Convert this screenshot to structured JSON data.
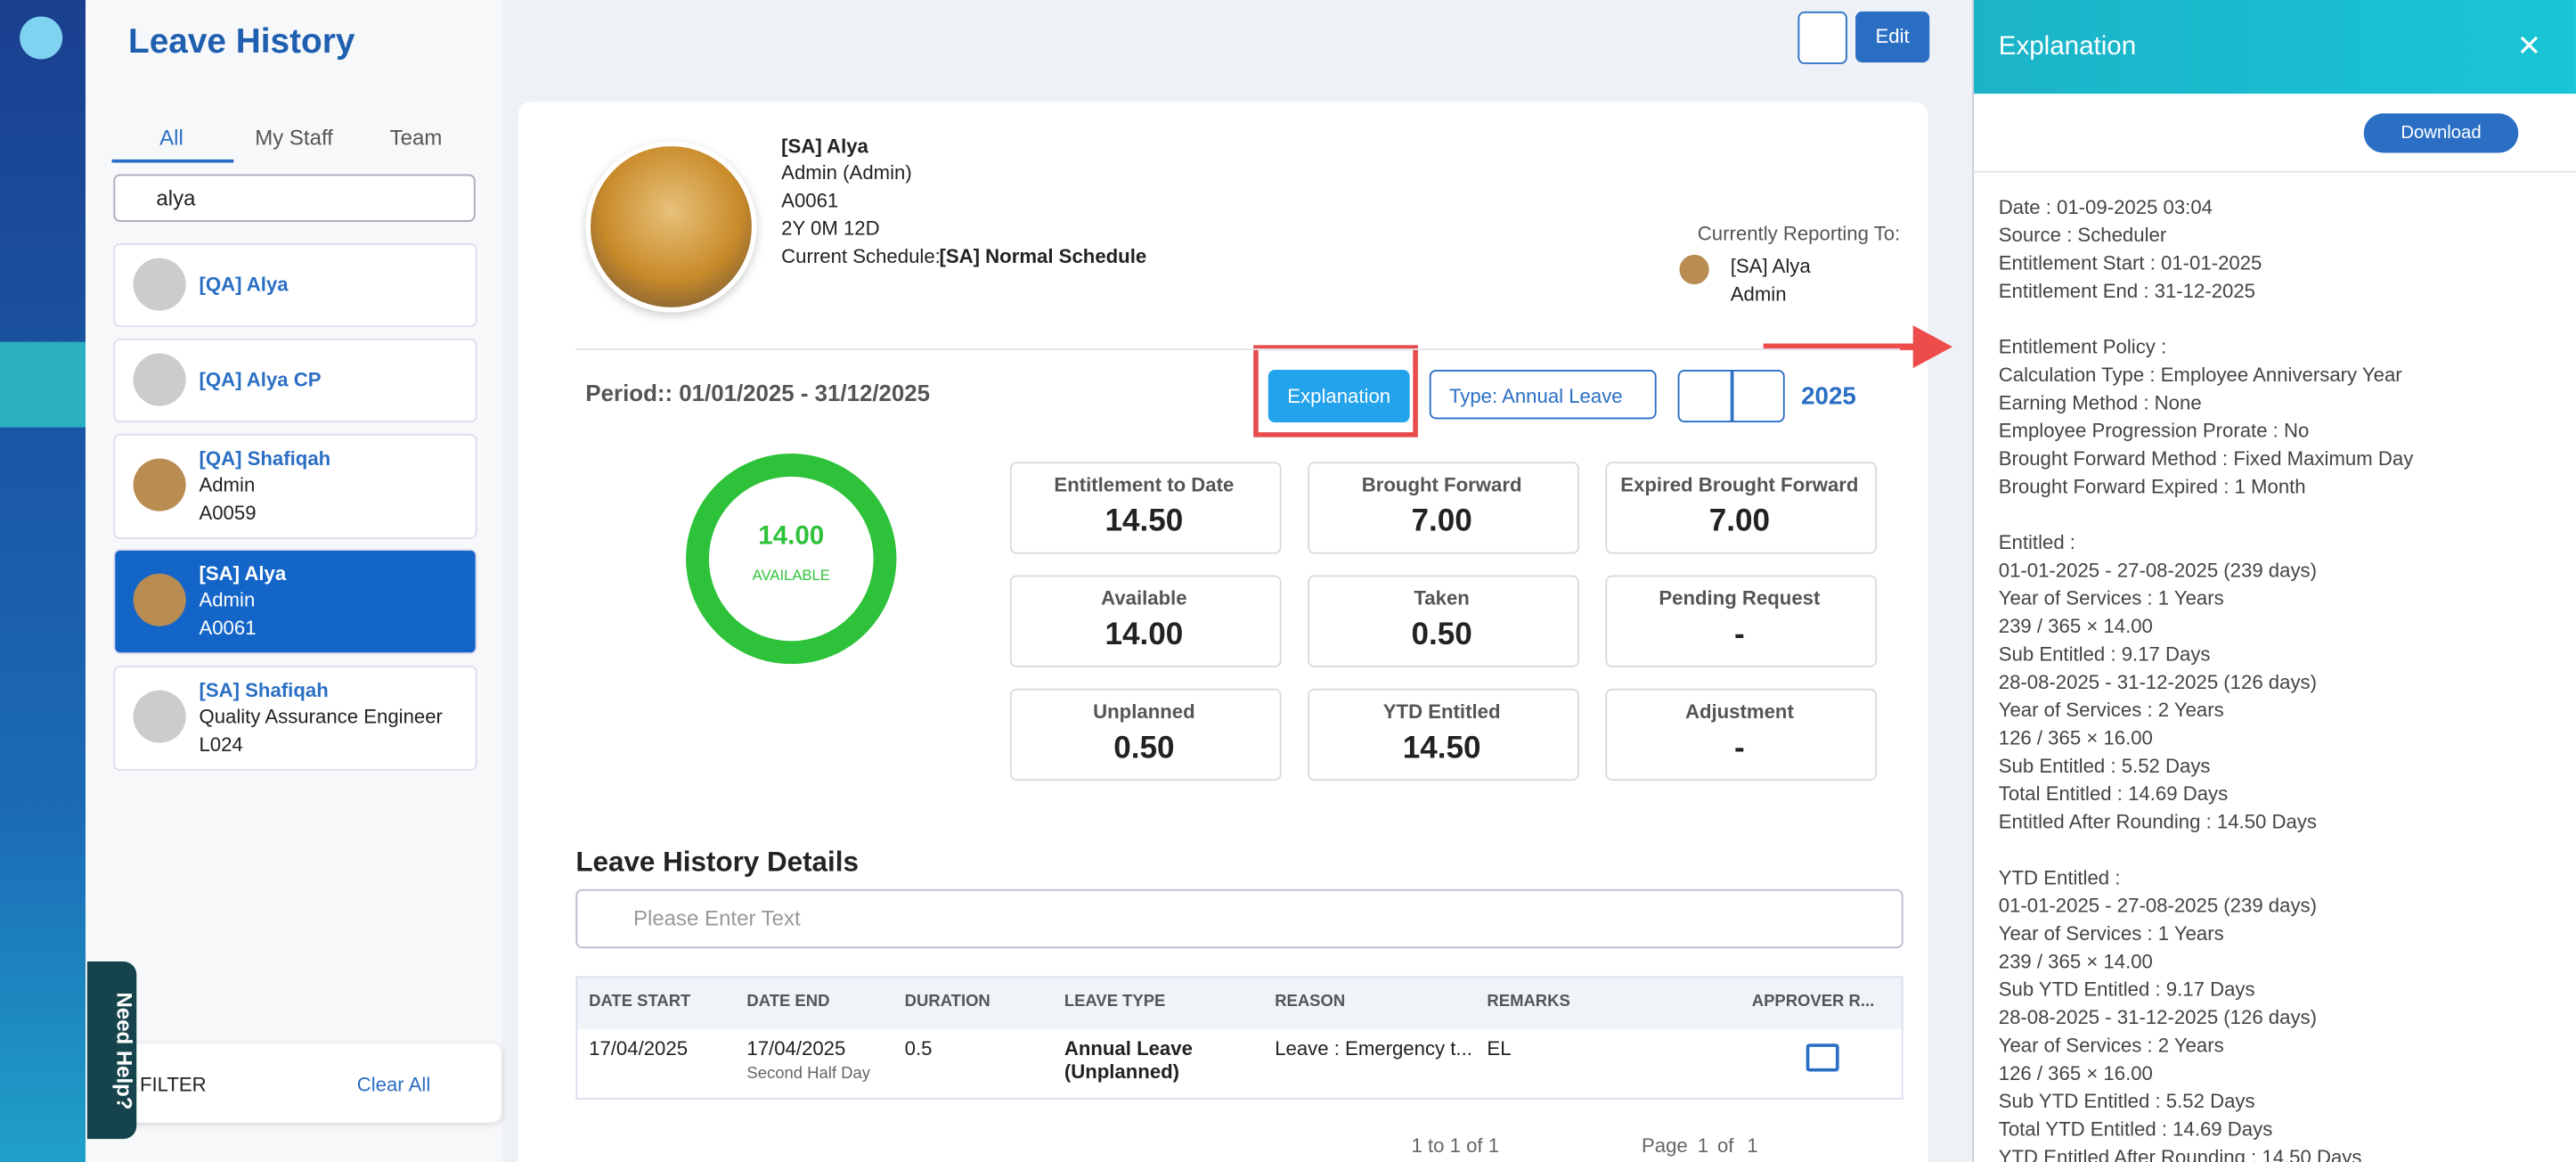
{
  "header": {
    "title": "Leave History",
    "edit": "Edit"
  },
  "staff_panel": {
    "tabs": [
      "All",
      "My Staff",
      "Team"
    ],
    "search": "alya",
    "staff": [
      {
        "name": "[QA] Alya"
      },
      {
        "name": "[QA] Alya CP"
      },
      {
        "name": "[QA] Shafiqah",
        "role": "Admin",
        "id": "A0059"
      },
      {
        "name": "[SA] Alya",
        "role": "Admin",
        "id": "A0061"
      },
      {
        "name": "[SA] Shafiqah",
        "role": "Quality Assurance Engineer",
        "id": "L024"
      }
    ],
    "filter": "FILTER",
    "clear_all": "Clear All",
    "need_help": "Need Help?"
  },
  "profile": {
    "name": "[SA] Alya",
    "role": "Admin (Admin)",
    "id": "A0061",
    "tenure": "2Y 0M 12D",
    "schedule_label": "Current Schedule:",
    "schedule": "[SA] Normal Schedule",
    "reporting_label": "Currently Reporting To:",
    "reporting_name": "[SA] Alya",
    "reporting_role": "Admin"
  },
  "summary": {
    "period": "Period:: 01/01/2025 - 31/12/2025",
    "explanation_button": "Explanation",
    "type_dropdown": "Type: Annual Leave",
    "year": "2025",
    "donut_value": "14.00",
    "donut_label": "AVAILABLE",
    "stats": [
      {
        "label": "Entitlement to Date",
        "value": "14.50"
      },
      {
        "label": "Brought Forward",
        "value": "7.00"
      },
      {
        "label": "Expired Brought Forward",
        "value": "7.00"
      },
      {
        "label": "Available",
        "value": "14.00"
      },
      {
        "label": "Taken",
        "value": "0.50"
      },
      {
        "label": "Pending Request",
        "value": "-"
      },
      {
        "label": "Unplanned",
        "value": "0.50"
      },
      {
        "label": "YTD Entitled",
        "value": "14.50"
      },
      {
        "label": "Adjustment",
        "value": "-"
      }
    ]
  },
  "details": {
    "title": "Leave History Details",
    "search_placeholder": "Please Enter Text",
    "columns": [
      "DATE START",
      "DATE END",
      "DURATION",
      "LEAVE TYPE",
      "REASON",
      "REMARKS",
      "APPROVER R..."
    ],
    "rows": [
      [
        "17/04/2025",
        "17/04/2025",
        "0.5",
        "Annual Leave (Unplanned)",
        "Leave : Emergency t...",
        "EL"
      ]
    ],
    "row_notes": [
      "Second Half Day"
    ],
    "pagination": {
      "range": "1 to 1 of 1",
      "page_label": "Page",
      "page": "1",
      "of": "of",
      "total": "1"
    }
  },
  "explanation": {
    "title": "Explanation",
    "download": "Download",
    "groups": [
      [
        "Date : 01-09-2025 03:04",
        "Source : Scheduler",
        "Entitlement Start : 01-01-2025",
        "Entitlement End : 31-12-2025"
      ],
      [
        "Entitlement Policy :",
        "Calculation Type : Employee Anniversary Year",
        "Earning Method : None",
        "Employee Progression Prorate : No",
        "Brought Forward Method : Fixed Maximum Day",
        "Brought Forward Expired : 1 Month"
      ],
      [
        "Entitled :",
        "01-01-2025 - 27-08-2025 (239 days)",
        "Year of Services : 1 Years",
        "239 / 365 × 14.00",
        "Sub Entitled : 9.17 Days",
        "28-08-2025 - 31-12-2025 (126 days)",
        "Year of Services : 2 Years",
        "126 / 365 × 16.00",
        "Sub Entitled : 5.52 Days",
        "Total Entitled : 14.69 Days",
        "Entitled After Rounding : 14.50 Days"
      ],
      [
        "YTD Entitled :",
        "01-01-2025 - 27-08-2025 (239 days)",
        "Year of Services : 1 Years",
        "239 / 365 × 14.00",
        "Sub YTD Entitled : 9.17 Days",
        "28-08-2025 - 31-12-2025 (126 days)",
        "Year of Services : 2 Years",
        "126 / 365 × 16.00",
        "Sub YTD Entitled : 5.52 Days",
        "Total YTD Entitled : 14.69 Days",
        "YTD Entitled After Rounding : 14.50 Days"
      ]
    ]
  }
}
